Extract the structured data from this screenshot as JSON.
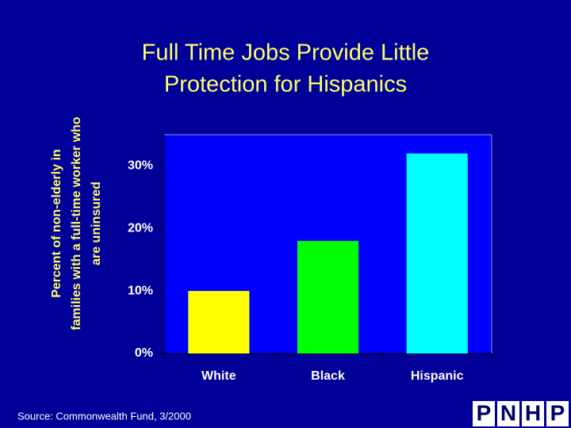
{
  "chart_data": {
    "type": "bar",
    "title": [
      "Full Time Jobs Provide Little",
      "Protection for Hispanics"
    ],
    "ylabel": [
      "Percent of non-elderly in",
      "families with a full-time worker who",
      "are uninsured"
    ],
    "categories": [
      "White",
      "Black",
      "Hispanic"
    ],
    "values": [
      10,
      18,
      32
    ],
    "colors": [
      "#ffff00",
      "#00ff00",
      "#00ffff"
    ],
    "ylim": [
      0,
      35
    ],
    "yticks": [
      {
        "value": 0,
        "label": "0%"
      },
      {
        "value": 10,
        "label": "10%"
      },
      {
        "value": 20,
        "label": "20%"
      },
      {
        "value": 30,
        "label": "30%"
      }
    ],
    "grid": false
  },
  "footer": {
    "source": "Source: Commonwealth Fund, 3/2000",
    "logo": [
      "P",
      "N",
      "H",
      "P"
    ]
  }
}
